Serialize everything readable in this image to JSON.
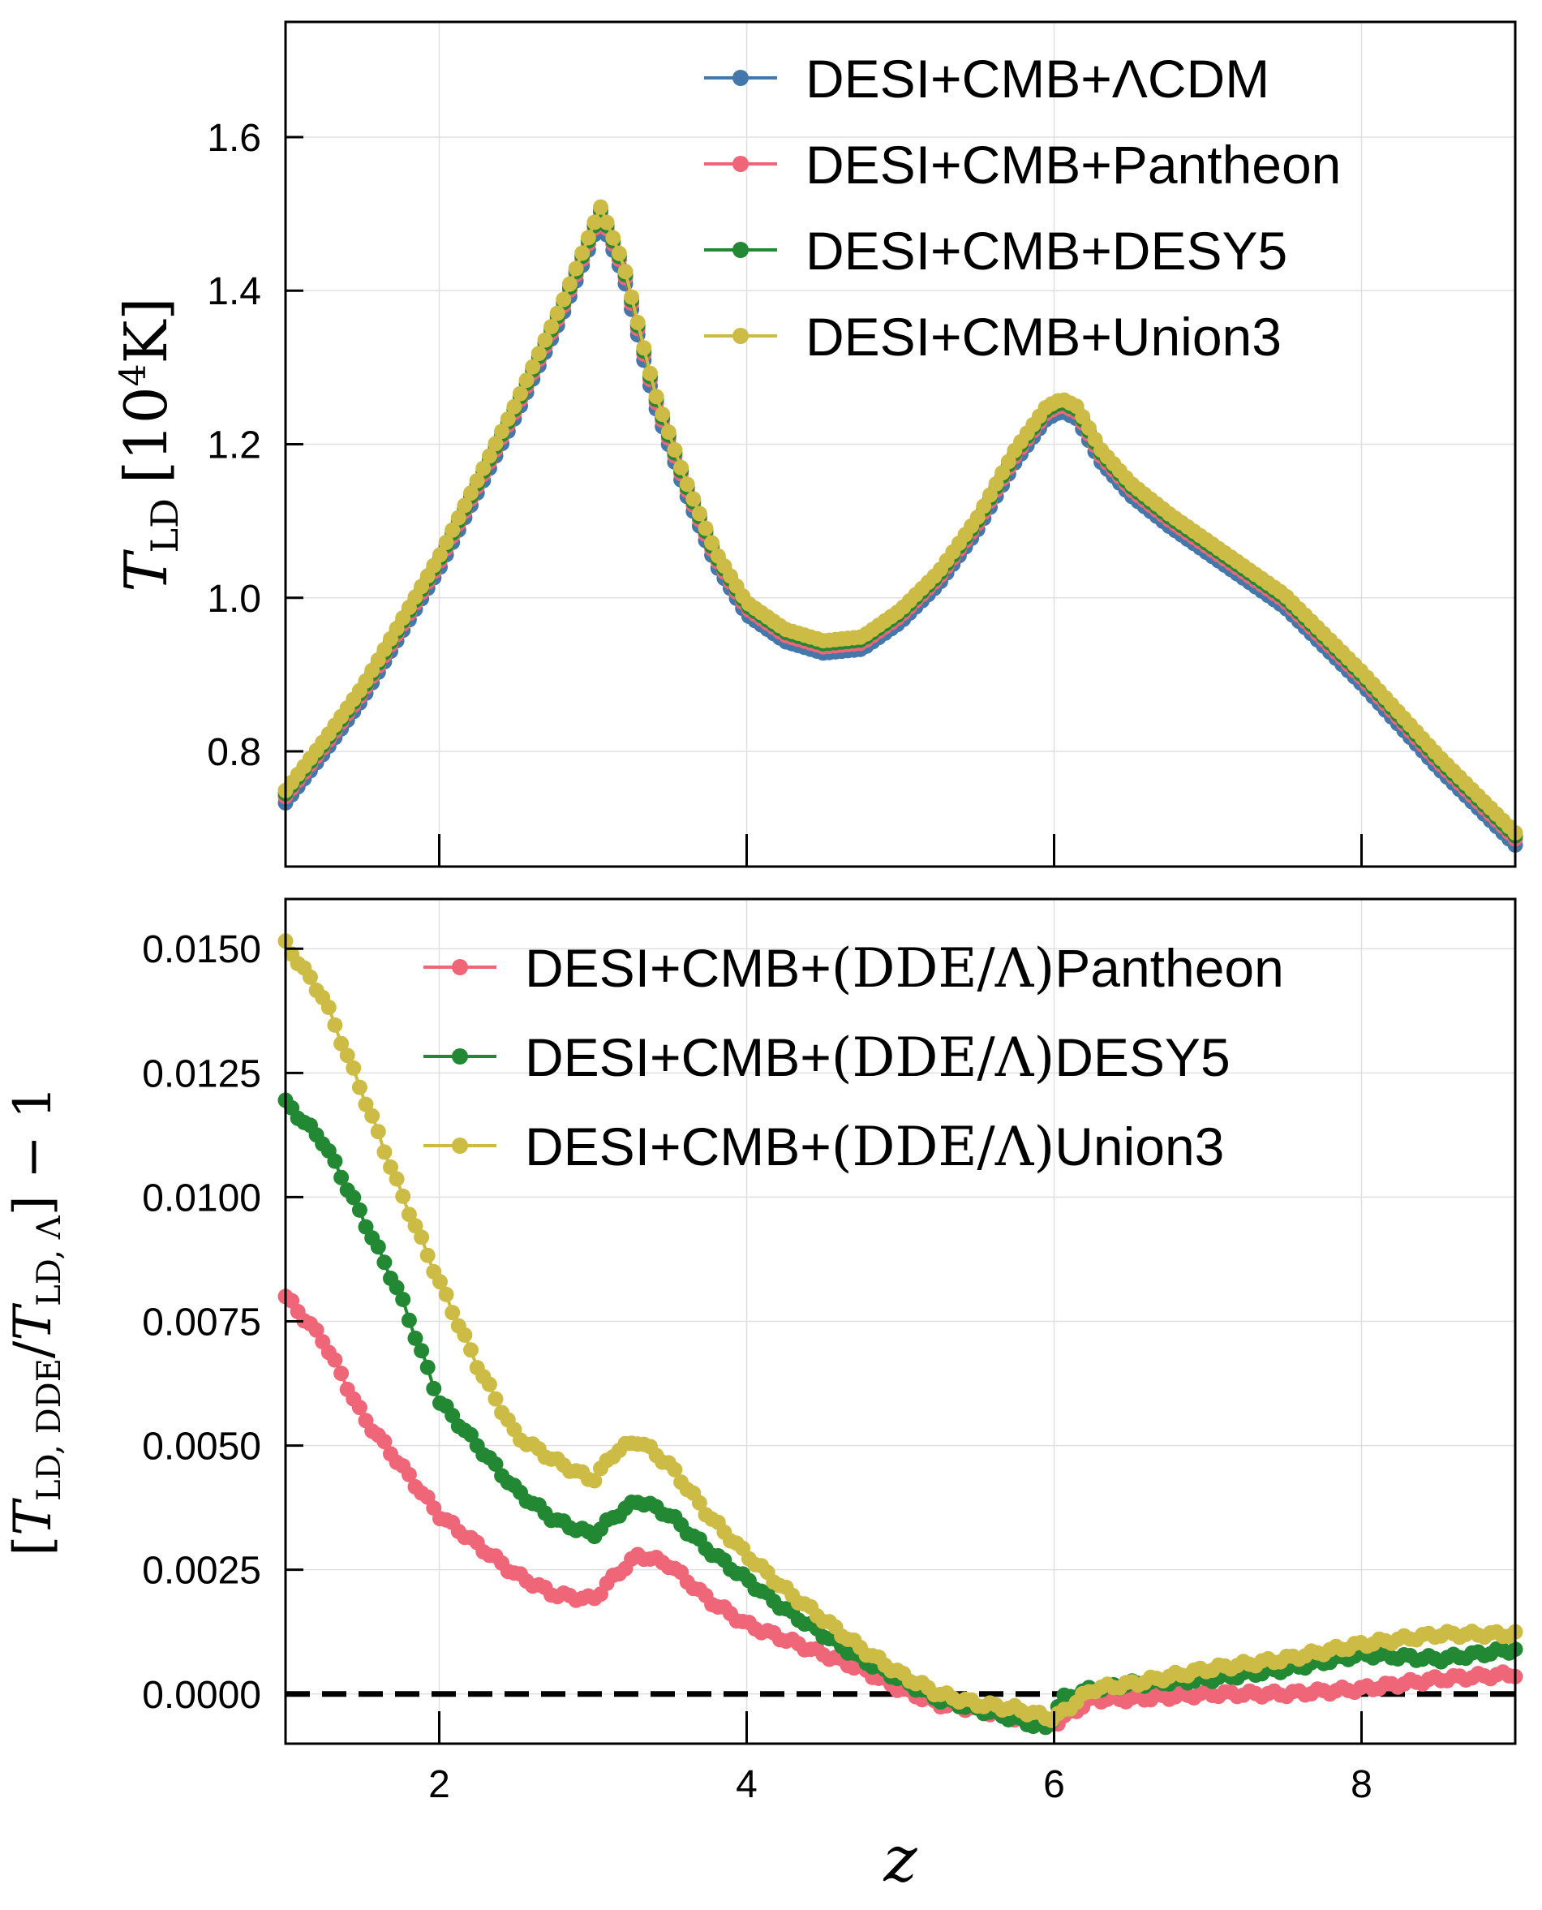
{
  "chart_data": [
    {
      "type": "line",
      "panel": "top",
      "title": "",
      "xlabel": "",
      "ylabel": "T_LD [10^4 K]",
      "ylabel_parts": {
        "symbol": "T",
        "subscript": "LD",
        "unit_open": "[10",
        "unit_exp": "4",
        "unit_close": "K]"
      },
      "xlim": [
        1,
        9
      ],
      "ylim": [
        0.65,
        1.75
      ],
      "xticks": [
        2,
        4,
        6,
        8
      ],
      "yticks": [
        0.8,
        1.0,
        1.2,
        1.4,
        1.6
      ],
      "ytick_labels": [
        "0.8",
        "1.0",
        "1.2",
        "1.4",
        "1.6"
      ],
      "grid": true,
      "legend_position": "top-right",
      "marker": "circle",
      "control_points": {
        "z": [
          1.0,
          1.25,
          1.5,
          2.0,
          2.5,
          2.8,
          3.0,
          3.05,
          3.2,
          3.4,
          3.6,
          3.8,
          4.0,
          4.25,
          4.5,
          4.75,
          5.0,
          5.25,
          5.5,
          5.75,
          5.95,
          6.05,
          6.15,
          6.3,
          6.5,
          6.75,
          7.0,
          7.5,
          8.0,
          8.5,
          9.0
        ],
        "t": [
          0.745,
          0.81,
          0.88,
          1.05,
          1.25,
          1.38,
          1.48,
          1.505,
          1.43,
          1.265,
          1.15,
          1.055,
          0.99,
          0.955,
          0.94,
          0.945,
          0.98,
          1.03,
          1.1,
          1.19,
          1.245,
          1.255,
          1.245,
          1.19,
          1.145,
          1.105,
          1.07,
          1.0,
          0.9,
          0.79,
          0.69
        ]
      },
      "series": [
        {
          "name": "DESI+CMB+ΛCDM",
          "label": "DESI+CMB+ΛCDM",
          "color": "#4477aa",
          "offset": -0.012
        },
        {
          "name": "DESI+CMB+Pantheon",
          "label": "DESI+CMB+Pantheon",
          "color": "#ee6677",
          "offset": -0.004
        },
        {
          "name": "DESI+CMB+DESY5",
          "label": "DESI+CMB+DESY5",
          "color": "#228833",
          "offset": 0.0
        },
        {
          "name": "DESI+CMB+Union3",
          "label": "DESI+CMB+Union3",
          "color": "#ccbb44",
          "offset": 0.004
        }
      ]
    },
    {
      "type": "line",
      "panel": "bottom",
      "title": "",
      "xlabel": "z",
      "ylabel": "[T_LD,DDE / T_LD,Λ] − 1",
      "ylabel_parts": {
        "bracket_open": "[",
        "num_symbol": "T",
        "num_subscript": "LD, DDE",
        "slash": "/",
        "den_symbol": "T",
        "den_subscript": "LD, Λ",
        "bracket_close": "]",
        "tail": " − 1"
      },
      "xlim": [
        1,
        9
      ],
      "ylim": [
        -0.001,
        0.016
      ],
      "xticks": [
        2,
        4,
        6,
        8
      ],
      "xtick_labels": [
        "2",
        "4",
        "6",
        "8"
      ],
      "yticks": [
        0.0,
        0.0025,
        0.005,
        0.0075,
        0.01,
        0.0125,
        0.015
      ],
      "ytick_labels": [
        "0.0000",
        "0.0025",
        "0.0050",
        "0.0075",
        "0.0100",
        "0.0125",
        "0.0150"
      ],
      "grid": true,
      "legend_position": "top-right",
      "reference_line": {
        "y": 0.0,
        "style": "dashed",
        "color": "#000000"
      },
      "marker": "circle",
      "series": [
        {
          "name": "DESI+CMB+(DDE/Λ)Pantheon",
          "label_prefix": "DESI+CMB+",
          "label_ratio": "(DDE/Λ)",
          "label_suffix": "Pantheon",
          "color": "#ee6677",
          "z": [
            1.0,
            1.25,
            1.5,
            2.0,
            2.5,
            2.75,
            3.0,
            3.15,
            3.3,
            3.5,
            3.75,
            4.0,
            4.25,
            4.5,
            4.75,
            5.0,
            5.25,
            5.5,
            5.75,
            6.0,
            6.25,
            6.5,
            7.0,
            7.5,
            8.0,
            8.5,
            9.0
          ],
          "y": [
            0.008,
            0.0071,
            0.0056,
            0.0036,
            0.0024,
            0.002,
            0.0019,
            0.0024,
            0.0028,
            0.0026,
            0.0019,
            0.0014,
            0.0011,
            0.0008,
            0.0005,
            0.0001,
            -0.0002,
            -0.0003,
            -0.0005,
            -0.0006,
            -0.0001,
            -0.0001,
            0.0,
            0.0,
            0.0001,
            0.0003,
            0.0004
          ]
        },
        {
          "name": "DESI+CMB+(DDE/Λ)DESY5",
          "label_prefix": "DESI+CMB+",
          "label_ratio": "(DDE/Λ)",
          "label_suffix": "DESY5",
          "color": "#228833",
          "z": [
            1.0,
            1.25,
            1.5,
            1.75,
            2.0,
            2.5,
            2.75,
            3.0,
            3.15,
            3.3,
            3.5,
            3.75,
            4.0,
            4.25,
            4.5,
            4.75,
            5.0,
            5.25,
            5.5,
            5.75,
            5.95,
            6.05,
            6.25,
            6.5,
            7.0,
            7.5,
            8.0,
            8.5,
            9.0
          ],
          "y": [
            0.0119,
            0.0111,
            0.0096,
            0.008,
            0.0059,
            0.0041,
            0.0035,
            0.0032,
            0.0036,
            0.0039,
            0.0036,
            0.0029,
            0.0023,
            0.0017,
            0.0012,
            0.0007,
            0.0003,
            -0.0001,
            -0.0003,
            -0.0005,
            -0.0007,
            -0.0001,
            0.0001,
            0.0002,
            0.0003,
            0.0005,
            0.0008,
            0.0007,
            0.0009
          ]
        },
        {
          "name": "DESI+CMB+(DDE/Λ)Union3",
          "label_prefix": "DESI+CMB+",
          "label_ratio": "(DDE/Λ)",
          "label_suffix": "Union3",
          "color": "#ccbb44",
          "z": [
            1.0,
            1.25,
            1.5,
            1.75,
            2.0,
            2.25,
            2.5,
            2.75,
            3.0,
            3.15,
            3.3,
            3.5,
            3.75,
            4.0,
            4.25,
            4.5,
            4.75,
            5.0,
            5.25,
            5.5,
            5.75,
            6.0,
            6.25,
            6.5,
            7.0,
            7.5,
            8.0,
            8.5,
            9.0
          ],
          "y": [
            0.0151,
            0.014,
            0.0121,
            0.0101,
            0.0083,
            0.0066,
            0.0052,
            0.0047,
            0.0043,
            0.0049,
            0.0051,
            0.0046,
            0.0036,
            0.0028,
            0.0021,
            0.0015,
            0.0009,
            0.0004,
            0.0,
            -0.0002,
            -0.0003,
            -0.0005,
            0.0001,
            0.0002,
            0.0005,
            0.0007,
            0.001,
            0.0012,
            0.0012
          ]
        }
      ]
    }
  ]
}
